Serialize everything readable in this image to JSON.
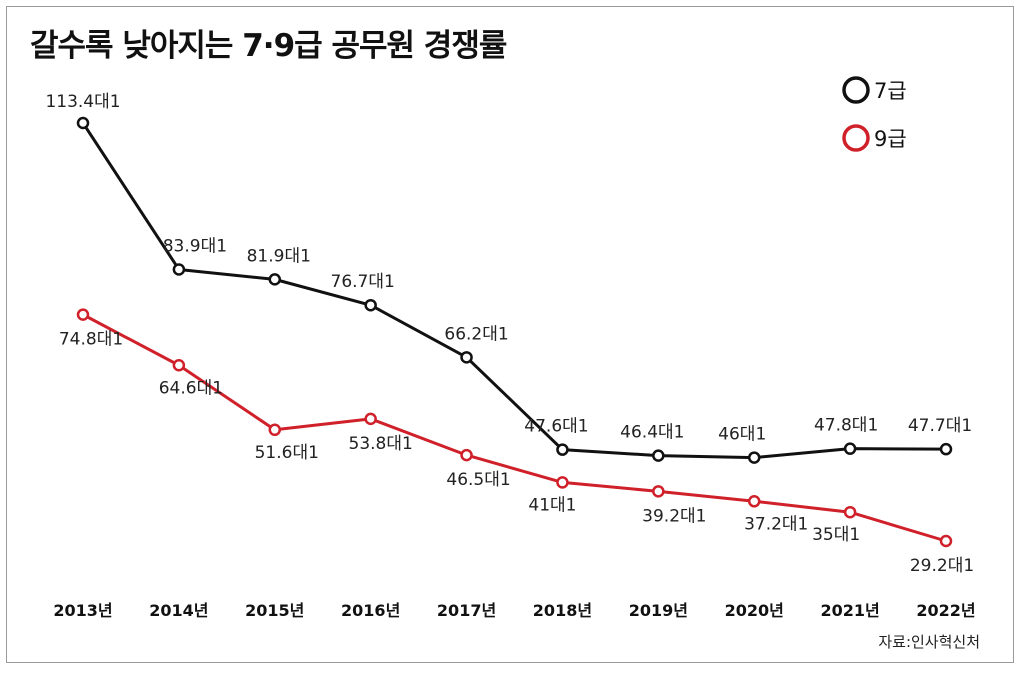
{
  "title": "갈수록 낮아지는 7·9급 공무원 경쟁률",
  "source": "자료:인사혁신처",
  "colors": {
    "grade7": "#111111",
    "grade9": "#d0202a"
  },
  "chart_data": {
    "type": "line",
    "title": "갈수록 낮아지는 7·9급 공무원 경쟁률",
    "xlabel": "",
    "ylabel": "",
    "x": [
      "2013년",
      "2014년",
      "2015년",
      "2016년",
      "2017년",
      "2018년",
      "2019년",
      "2020년",
      "2021년",
      "2022년"
    ],
    "ylim": [
      29,
      115
    ],
    "legend": "top-right",
    "series": [
      {
        "name": "7급",
        "color": "#111111",
        "values": [
          113.4,
          83.9,
          81.9,
          76.7,
          66.2,
          47.6,
          46.4,
          46,
          47.8,
          47.7
        ],
        "labels": [
          "113.4대1",
          "83.9대1",
          "81.9대1",
          "76.7대1",
          "66.2대1",
          "47.6대1",
          "46.4대1",
          "46대1",
          "47.8대1",
          "47.7대1"
        ]
      },
      {
        "name": "9급",
        "color": "#d0202a",
        "values": [
          74.8,
          64.6,
          51.6,
          53.8,
          46.5,
          41,
          39.2,
          37.2,
          35,
          29.2
        ],
        "labels": [
          "74.8대1",
          "64.6대1",
          "51.6대1",
          "53.8대1",
          "46.5대1",
          "41대1",
          "39.2대1",
          "37.2대1",
          "35대1",
          "29.2대1"
        ]
      }
    ]
  }
}
